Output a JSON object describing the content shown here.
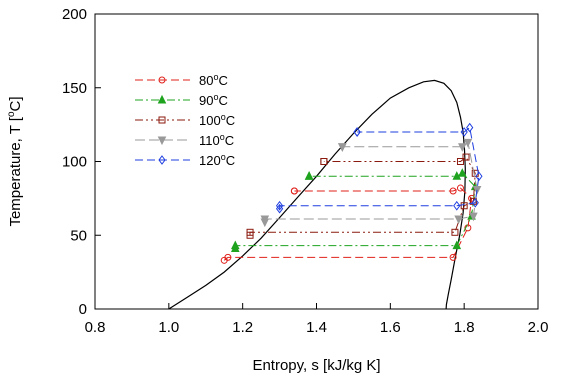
{
  "chart_data": {
    "type": "line",
    "xlabel": "Entropy, s [kJ/kg K]",
    "ylabel": "Temperature, T [oC]",
    "xlim": [
      0.8,
      2.0
    ],
    "ylim": [
      0,
      200
    ],
    "x_ticks": [
      "0.8",
      "1.0",
      "1.2",
      "1.4",
      "1.6",
      "1.8",
      "2.0"
    ],
    "y_ticks": [
      "0",
      "50",
      "100",
      "150",
      "200"
    ],
    "x_tick_values": [
      0.8,
      1.0,
      1.2,
      1.4,
      1.6,
      1.8,
      2.0
    ],
    "y_tick_values": [
      0,
      50,
      100,
      150,
      200
    ],
    "grid": false,
    "legend_position": "top-left",
    "saturation_dome": {
      "color": "#000000",
      "x": [
        1.0,
        1.05,
        1.1,
        1.15,
        1.2,
        1.25,
        1.3,
        1.35,
        1.4,
        1.45,
        1.5,
        1.55,
        1.6,
        1.65,
        1.69,
        1.72,
        1.745,
        1.765,
        1.78,
        1.79,
        1.797,
        1.801,
        1.803,
        1.802,
        1.797,
        1.788,
        1.776,
        1.765,
        1.757,
        1.752,
        1.751
      ],
      "y": [
        0,
        8,
        16,
        25,
        36,
        48,
        62,
        76,
        90,
        105,
        119,
        132,
        143,
        150,
        154,
        155,
        153,
        148,
        140,
        130,
        120,
        108,
        95,
        80,
        65,
        50,
        35,
        20,
        10,
        3,
        0
      ]
    },
    "series": [
      {
        "name": "80oC",
        "color": "#e0201b",
        "dash": "8,4",
        "marker": "circle",
        "x": [
          1.15,
          1.16,
          1.77,
          1.81,
          1.82,
          1.79,
          1.77,
          1.34,
          1.34
        ],
        "y": [
          33,
          35,
          35,
          55,
          75,
          82,
          80,
          80,
          80
        ]
      },
      {
        "name": "90oC",
        "color": "#1fa31f",
        "dash": "8,3,2,3",
        "marker": "triangle",
        "x": [
          1.18,
          1.18,
          1.78,
          1.82,
          1.83,
          1.795,
          1.78,
          1.38,
          1.38
        ],
        "y": [
          41,
          43,
          43,
          63,
          83,
          92,
          90,
          90,
          90
        ]
      },
      {
        "name": "100oC",
        "color": "#8b1a0e",
        "dash": "8,3,2,3,2,3",
        "marker": "square",
        "x": [
          1.22,
          1.22,
          1.775,
          1.8,
          1.825,
          1.83,
          1.805,
          1.79,
          1.42,
          1.42
        ],
        "y": [
          50,
          52,
          52,
          70,
          73,
          92,
          103,
          100,
          100,
          100
        ]
      },
      {
        "name": "110oC",
        "color": "#999999",
        "dash": "10,4",
        "marker": "triangle-down",
        "x": [
          1.26,
          1.26,
          1.785,
          1.825,
          1.835,
          1.81,
          1.795,
          1.47,
          1.47
        ],
        "y": [
          59,
          61,
          61,
          63,
          81,
          113,
          110,
          110,
          110
        ]
      },
      {
        "name": "120oC",
        "color": "#1f3fe0",
        "dash": "8,4",
        "marker": "diamond",
        "x": [
          1.3,
          1.3,
          1.78,
          1.83,
          1.84,
          1.815,
          1.8,
          1.51,
          1.51
        ],
        "y": [
          68,
          70,
          70,
          72,
          90,
          123,
          120,
          120,
          120
        ]
      }
    ]
  }
}
